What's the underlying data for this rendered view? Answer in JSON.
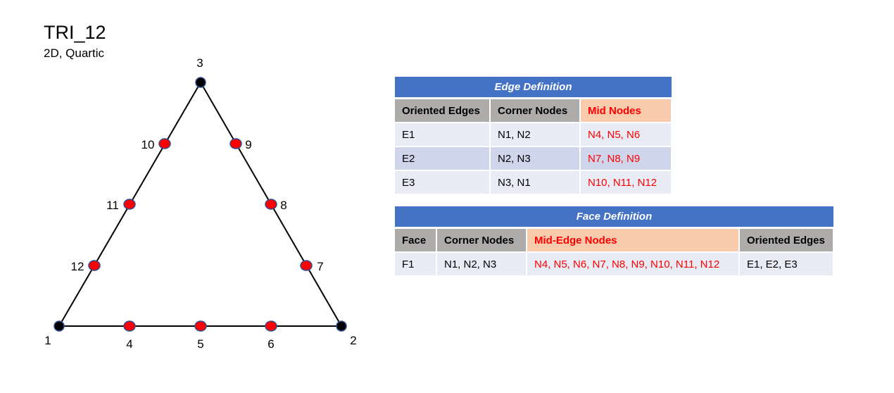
{
  "title": "TRI_12",
  "subtitle": "2D, Quartic",
  "colors": {
    "corner_node": "#000000",
    "mid_node": "#FF0000",
    "node_outline": "#2F4F8F",
    "table_caption": "#4472C4",
    "header_gray": "#AEABAB",
    "header_peach": "#F8CBAD",
    "row_light": "#E9ECF5",
    "row_dark": "#CFD5EA"
  },
  "nodes": [
    {
      "id": "1",
      "type": "corner"
    },
    {
      "id": "2",
      "type": "corner"
    },
    {
      "id": "3",
      "type": "corner"
    },
    {
      "id": "4",
      "type": "mid"
    },
    {
      "id": "5",
      "type": "mid"
    },
    {
      "id": "6",
      "type": "mid"
    },
    {
      "id": "7",
      "type": "mid"
    },
    {
      "id": "8",
      "type": "mid"
    },
    {
      "id": "9",
      "type": "mid"
    },
    {
      "id": "10",
      "type": "mid"
    },
    {
      "id": "11",
      "type": "mid"
    },
    {
      "id": "12",
      "type": "mid"
    }
  ],
  "edge_table": {
    "caption": "Edge Definition",
    "headers": [
      "Oriented Edges",
      "Corner Nodes",
      "Mid Nodes"
    ],
    "rows": [
      [
        "E1",
        "N1, N2",
        "N4, N5, N6"
      ],
      [
        "E2",
        "N2, N3",
        "N7, N8, N9"
      ],
      [
        "E3",
        "N3, N1",
        "N10, N11, N12"
      ]
    ]
  },
  "face_table": {
    "caption": "Face Definition",
    "headers": [
      "Face",
      "Corner Nodes",
      "Mid-Edge Nodes",
      "Oriented Edges"
    ],
    "rows": [
      [
        "F1",
        "N1, N2, N3",
        "N4, N5, N6, N7, N8, N9, N10, N11, N12",
        "E1, E2, E3"
      ]
    ]
  }
}
